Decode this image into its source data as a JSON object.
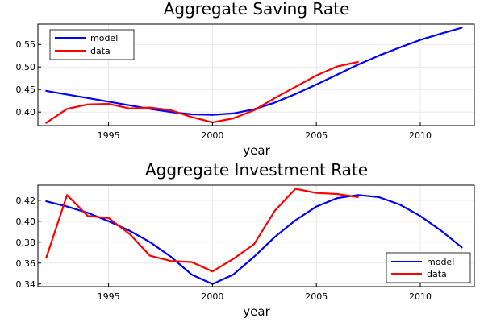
{
  "chart_data": [
    {
      "type": "line",
      "title": "Aggregate Saving Rate",
      "xlabel": "year",
      "ylabel": "",
      "xlim": [
        1991.6,
        2012.6
      ],
      "ylim": [
        0.37,
        0.595
      ],
      "xticks": [
        1995,
        2000,
        2005,
        2010
      ],
      "yticks": [
        0.4,
        0.45,
        0.5,
        0.55
      ],
      "ytick_labels": [
        "0.40",
        "0.45",
        "0.50",
        "0.55"
      ],
      "grid": true,
      "legend_position": "top-left",
      "series": [
        {
          "name": "model",
          "color": "#0000ff",
          "x": [
            1992,
            1993,
            1994,
            1995,
            1996,
            1997,
            1998,
            1999,
            2000,
            2001,
            2002,
            2003,
            2004,
            2005,
            2006,
            2007,
            2008,
            2009,
            2010,
            2011,
            2012
          ],
          "y": [
            0.447,
            0.439,
            0.431,
            0.423,
            0.415,
            0.407,
            0.4,
            0.395,
            0.394,
            0.397,
            0.406,
            0.421,
            0.44,
            0.461,
            0.483,
            0.505,
            0.525,
            0.543,
            0.56,
            0.574,
            0.587
          ]
        },
        {
          "name": "data",
          "color": "#ff0000",
          "x": [
            1992,
            1993,
            1994,
            1995,
            1996,
            1997,
            1998,
            1999,
            2000,
            2001,
            2002,
            2003,
            2004,
            2005,
            2006,
            2007
          ],
          "y": [
            0.376,
            0.407,
            0.417,
            0.418,
            0.408,
            0.41,
            0.404,
            0.389,
            0.377,
            0.386,
            0.404,
            0.431,
            0.456,
            0.481,
            0.501,
            0.511
          ]
        }
      ]
    },
    {
      "type": "line",
      "title": "Aggregate Investment Rate",
      "xlabel": "year",
      "ylabel": "",
      "xlim": [
        1991.6,
        2012.6
      ],
      "ylim": [
        0.3375,
        0.4345
      ],
      "xticks": [
        1995,
        2000,
        2005,
        2010
      ],
      "yticks": [
        0.34,
        0.36,
        0.38,
        0.4,
        0.42
      ],
      "ytick_labels": [
        "0.34",
        "0.36",
        "0.38",
        "0.40",
        "0.42"
      ],
      "grid": true,
      "legend_position": "bottom-right",
      "series": [
        {
          "name": "model",
          "color": "#0000ff",
          "x": [
            1992,
            1993,
            1994,
            1995,
            1996,
            1997,
            1998,
            1999,
            2000,
            2001,
            2002,
            2003,
            2004,
            2005,
            2006,
            2007,
            2008,
            2009,
            2010,
            2011,
            2012
          ],
          "y": [
            0.419,
            0.414,
            0.408,
            0.4,
            0.391,
            0.38,
            0.366,
            0.349,
            0.34,
            0.349,
            0.366,
            0.385,
            0.401,
            0.414,
            0.422,
            0.425,
            0.423,
            0.416,
            0.405,
            0.391,
            0.375
          ]
        },
        {
          "name": "data",
          "color": "#ff0000",
          "x": [
            1992,
            1993,
            1994,
            1995,
            1996,
            1997,
            1998,
            1999,
            2000,
            2001,
            2002,
            2003,
            2004,
            2005,
            2006,
            2007
          ],
          "y": [
            0.365,
            0.425,
            0.405,
            0.403,
            0.388,
            0.367,
            0.362,
            0.361,
            0.352,
            0.364,
            0.378,
            0.41,
            0.431,
            0.427,
            0.426,
            0.423
          ]
        }
      ]
    }
  ]
}
